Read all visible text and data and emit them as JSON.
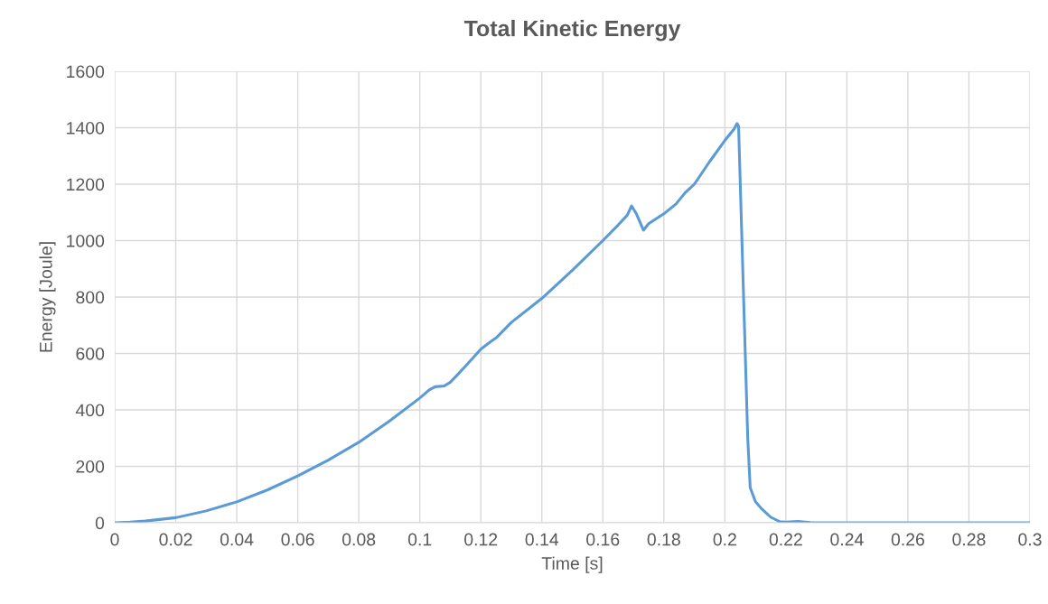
{
  "chart_data": {
    "type": "line",
    "title": "Total Kinetic Energy",
    "xlabel": "Time [s]",
    "ylabel": "Energy [Joule]",
    "series": [
      {
        "color": "#5b9bd5",
        "x": [
          0,
          0.005,
          0.01,
          0.02,
          0.03,
          0.04,
          0.05,
          0.06,
          0.07,
          0.08,
          0.09,
          0.1,
          0.103,
          0.105,
          0.108,
          0.11,
          0.115,
          0.12,
          0.123,
          0.125,
          0.13,
          0.14,
          0.15,
          0.16,
          0.165,
          0.168,
          0.1694,
          0.171,
          0.1733,
          0.175,
          0.18,
          0.184,
          0.187,
          0.19,
          0.195,
          0.2,
          0.203,
          0.204,
          0.2045,
          0.206,
          0.2075,
          0.2083,
          0.21,
          0.212,
          0.215,
          0.218,
          0.22,
          0.224,
          0.228,
          0.24,
          0.26,
          0.3
        ],
        "values": [
          0,
          2,
          6,
          18,
          42,
          74,
          116,
          166,
          222,
          285,
          360,
          442,
          470,
          482,
          485,
          498,
          555,
          615,
          640,
          655,
          710,
          795,
          895,
          1000,
          1055,
          1090,
          1123,
          1095,
          1037,
          1060,
          1095,
          1130,
          1170,
          1200,
          1280,
          1355,
          1395,
          1415,
          1405,
          850,
          300,
          125,
          75,
          50,
          20,
          4,
          2,
          5,
          1,
          0,
          0,
          0
        ]
      }
    ],
    "xlim": [
      0,
      0.3
    ],
    "xticks": [
      0,
      0.02,
      0.04,
      0.06,
      0.08,
      0.1,
      0.12,
      0.14,
      0.16,
      0.18,
      0.2,
      0.22,
      0.24,
      0.26,
      0.28,
      0.3
    ],
    "ylim": [
      0,
      1600
    ],
    "yticks": [
      0,
      200,
      400,
      600,
      800,
      1000,
      1200,
      1400,
      1600
    ],
    "grid": true
  }
}
